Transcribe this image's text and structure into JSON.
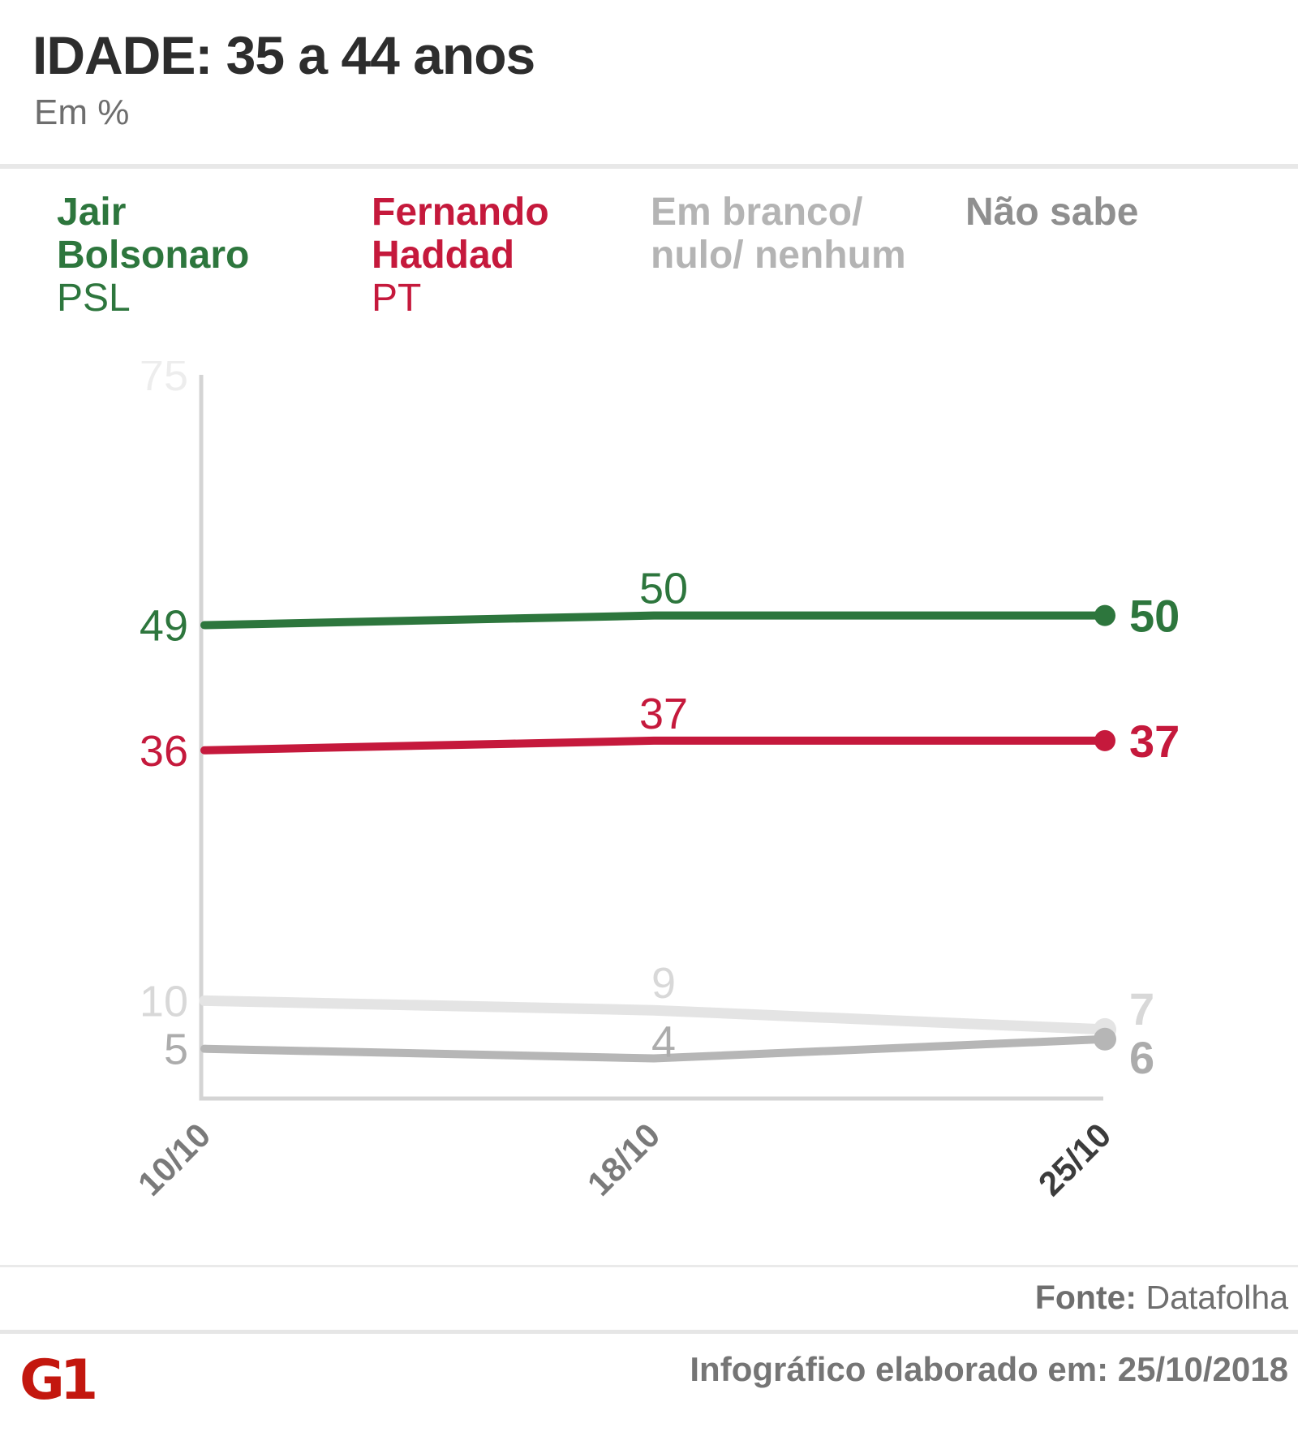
{
  "header": {
    "title": "IDADE: 35 a 44 anos",
    "subtitle": "Em %"
  },
  "legend": {
    "items": [
      {
        "name_lines": [
          "Jair",
          "Bolsonaro"
        ],
        "party": "PSL",
        "color": "#2d763d"
      },
      {
        "name_lines": [
          "Fernando",
          "Haddad"
        ],
        "party": "PT",
        "color": "#c5193c"
      },
      {
        "name_lines": [
          "Em branco/",
          "nulo/ nenhum"
        ],
        "party": "",
        "color": "#b4b4b4"
      },
      {
        "name_lines": [
          "Não sabe"
        ],
        "party": "",
        "color": "#8f8f8f"
      }
    ]
  },
  "chart_data": {
    "type": "line",
    "title": "IDADE: 35 a 44 anos",
    "unit": "%",
    "x": [
      "10/10",
      "18/10",
      "25/10"
    ],
    "x_tick_highlight": "25/10",
    "ylim": [
      0,
      75
    ],
    "y_axis_top_label": "75",
    "grid": false,
    "legend_position": "top",
    "series": [
      {
        "id": "bolsonaro",
        "name": "Jair Bolsonaro (PSL)",
        "values": [
          49,
          50,
          50
        ],
        "color": "#2d763d",
        "label_color": "#2d763d"
      },
      {
        "id": "haddad",
        "name": "Fernando Haddad (PT)",
        "values": [
          36,
          37,
          37
        ],
        "color": "#c5193c",
        "label_color": "#c5193c"
      },
      {
        "id": "branco",
        "name": "Em branco/ nulo/ nenhum",
        "values": [
          10,
          9,
          7
        ],
        "color": "#e4e4e4",
        "label_color": "#d8d8d8"
      },
      {
        "id": "nao_sabe",
        "name": "Não sabe",
        "values": [
          5,
          4,
          6
        ],
        "color": "#b6b6b6",
        "label_color": "#acacac"
      }
    ]
  },
  "footer": {
    "source_label": "Fonte:",
    "source_value": " Datafolha"
  },
  "bottom_bar": {
    "logo": "G1",
    "text": "Infográfico elaborado em: 25/10/2018"
  }
}
